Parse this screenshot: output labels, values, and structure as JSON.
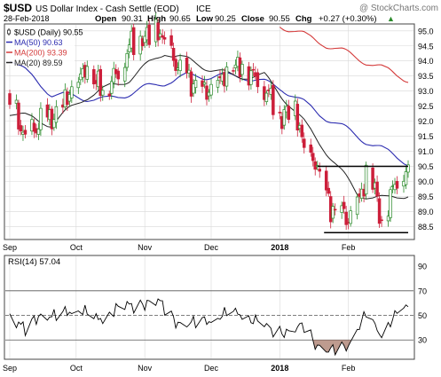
{
  "header": {
    "symbol": "$USD",
    "name": "US Dollar Index - Cash Settle (EOD)",
    "exchange": "ICE",
    "watermark": "@ StockCharts.com",
    "date": "28-Feb-2018",
    "open_label": "Open",
    "open": "90.31",
    "high_label": "High",
    "high": "90.65",
    "low_label": "Low",
    "low": "90.25",
    "close_label": "Close",
    "close": "90.55",
    "chg_label": "Chg",
    "chg": "+0.27 (+0.30%)",
    "chg_arrow": "▲"
  },
  "legend": [
    {
      "label": "$USD (Daily) 90.55",
      "color": "#222222",
      "icon": "candle-icon"
    },
    {
      "label": "MA(50) 90.63",
      "color": "#2c2cb0",
      "icon": "line-icon"
    },
    {
      "label": "MA(200) 93.39",
      "color": "#d43a3a",
      "icon": "line-icon"
    },
    {
      "label": "MA(20) 89.59",
      "color": "#222222",
      "icon": "line-icon"
    }
  ],
  "colors": {
    "up": "#2a8a2a",
    "down": "#cc1f3a",
    "ma50": "#2c2cb0",
    "ma200": "#d43a3a",
    "ma20": "#222222",
    "grid": "#d8d8d8"
  },
  "chart_data": [
    {
      "type": "candlestick",
      "title": "$USD (Daily) 90.55",
      "y_ticks": [
        "88.5",
        "89.0",
        "89.5",
        "90.0",
        "90.5",
        "91.0",
        "91.5",
        "92.0",
        "92.5",
        "93.0",
        "93.5",
        "94.0",
        "94.5",
        "95.0"
      ],
      "ylim": [
        88.1,
        95.2
      ],
      "x_ticks": [
        "Sep",
        "Oct",
        "Nov",
        "Dec",
        "2018",
        "Feb"
      ],
      "x_ticks_bold": "2018",
      "date_range": [
        "2017-09-01",
        "2018-02-28"
      ],
      "anchors": [
        [
          "2017-09-01",
          92.8
        ],
        [
          "2017-09-08",
          91.4
        ],
        [
          "2017-09-15",
          92.0
        ],
        [
          "2017-09-22",
          92.2
        ],
        [
          "2017-09-29",
          93.1
        ],
        [
          "2017-10-06",
          93.8
        ],
        [
          "2017-10-13",
          93.0
        ],
        [
          "2017-10-20",
          93.6
        ],
        [
          "2017-10-26",
          94.6
        ],
        [
          "2017-11-03",
          94.8
        ],
        [
          "2017-11-07",
          95.0
        ],
        [
          "2017-11-15",
          93.9
        ],
        [
          "2017-11-22",
          93.3
        ],
        [
          "2017-11-28",
          93.0
        ],
        [
          "2017-12-04",
          93.3
        ],
        [
          "2017-12-11",
          93.9
        ],
        [
          "2017-12-18",
          93.7
        ],
        [
          "2017-12-26",
          93.0
        ],
        [
          "2018-01-02",
          92.1
        ],
        [
          "2018-01-08",
          92.4
        ],
        [
          "2018-01-12",
          91.0
        ],
        [
          "2018-01-17",
          90.6
        ],
        [
          "2018-01-24",
          89.1
        ],
        [
          "2018-01-26",
          89.0
        ],
        [
          "2018-02-01",
          88.8
        ],
        [
          "2018-02-06",
          89.4
        ],
        [
          "2018-02-09",
          90.3
        ],
        [
          "2018-02-13",
          89.8
        ],
        [
          "2018-02-16",
          88.6
        ],
        [
          "2018-02-21",
          89.8
        ],
        [
          "2018-02-28",
          90.55
        ]
      ],
      "ma50_anchors": [
        [
          "2017-09-01",
          94.1
        ],
        [
          "2017-09-20",
          92.9
        ],
        [
          "2017-10-15",
          92.7
        ],
        [
          "2017-11-01",
          93.1
        ],
        [
          "2017-11-20",
          93.5
        ],
        [
          "2017-12-15",
          93.5
        ],
        [
          "2018-01-02",
          93.1
        ],
        [
          "2018-01-20",
          92.2
        ],
        [
          "2018-02-10",
          91.3
        ],
        [
          "2018-02-28",
          90.63
        ]
      ],
      "ma200_anchors": [
        [
          "2018-01-01",
          95.2
        ],
        [
          "2018-02-28",
          93.39
        ]
      ],
      "ma20_anchors": [
        [
          "2017-09-01",
          92.3
        ],
        [
          "2017-09-20",
          91.9
        ],
        [
          "2017-10-05",
          92.8
        ],
        [
          "2017-10-25",
          93.4
        ],
        [
          "2017-11-10",
          94.3
        ],
        [
          "2017-11-25",
          93.9
        ],
        [
          "2017-12-10",
          93.5
        ],
        [
          "2017-12-25",
          93.5
        ],
        [
          "2018-01-05",
          92.6
        ],
        [
          "2018-01-20",
          91.2
        ],
        [
          "2018-02-05",
          89.6
        ],
        [
          "2018-02-18",
          89.4
        ],
        [
          "2018-02-28",
          89.59
        ]
      ],
      "resistance": {
        "value": 90.5,
        "from": "2018-01-18",
        "to": "2018-02-28"
      },
      "support": {
        "value": 88.3,
        "from": "2018-01-21",
        "to": "2018-02-28"
      }
    },
    {
      "type": "line",
      "title": "RSI(14) 57.04",
      "y_ticks": [
        "30",
        "50",
        "70",
        "90"
      ],
      "ylim": [
        15,
        98
      ],
      "reference_lines": [
        30,
        50,
        70
      ],
      "x_ticks": [
        "Sep",
        "Oct",
        "Nov",
        "Dec",
        "2018",
        "Feb"
      ],
      "anchors": [
        [
          "2017-09-01",
          50
        ],
        [
          "2017-09-08",
          38
        ],
        [
          "2017-09-15",
          52
        ],
        [
          "2017-09-22",
          48
        ],
        [
          "2017-10-01",
          57
        ],
        [
          "2017-10-10",
          46
        ],
        [
          "2017-10-20",
          56
        ],
        [
          "2017-11-01",
          60
        ],
        [
          "2017-11-07",
          62
        ],
        [
          "2017-11-15",
          45
        ],
        [
          "2017-11-25",
          43
        ],
        [
          "2017-12-05",
          50
        ],
        [
          "2017-12-15",
          52
        ],
        [
          "2017-12-26",
          40
        ],
        [
          "2018-01-05",
          36
        ],
        [
          "2018-01-12",
          42
        ],
        [
          "2018-01-17",
          27
        ],
        [
          "2018-01-24",
          21
        ],
        [
          "2018-01-31",
          24
        ],
        [
          "2018-02-05",
          40
        ],
        [
          "2018-02-09",
          50
        ],
        [
          "2018-02-14",
          38
        ],
        [
          "2018-02-16",
          36
        ],
        [
          "2018-02-21",
          48
        ],
        [
          "2018-02-28",
          57.04
        ]
      ]
    }
  ]
}
